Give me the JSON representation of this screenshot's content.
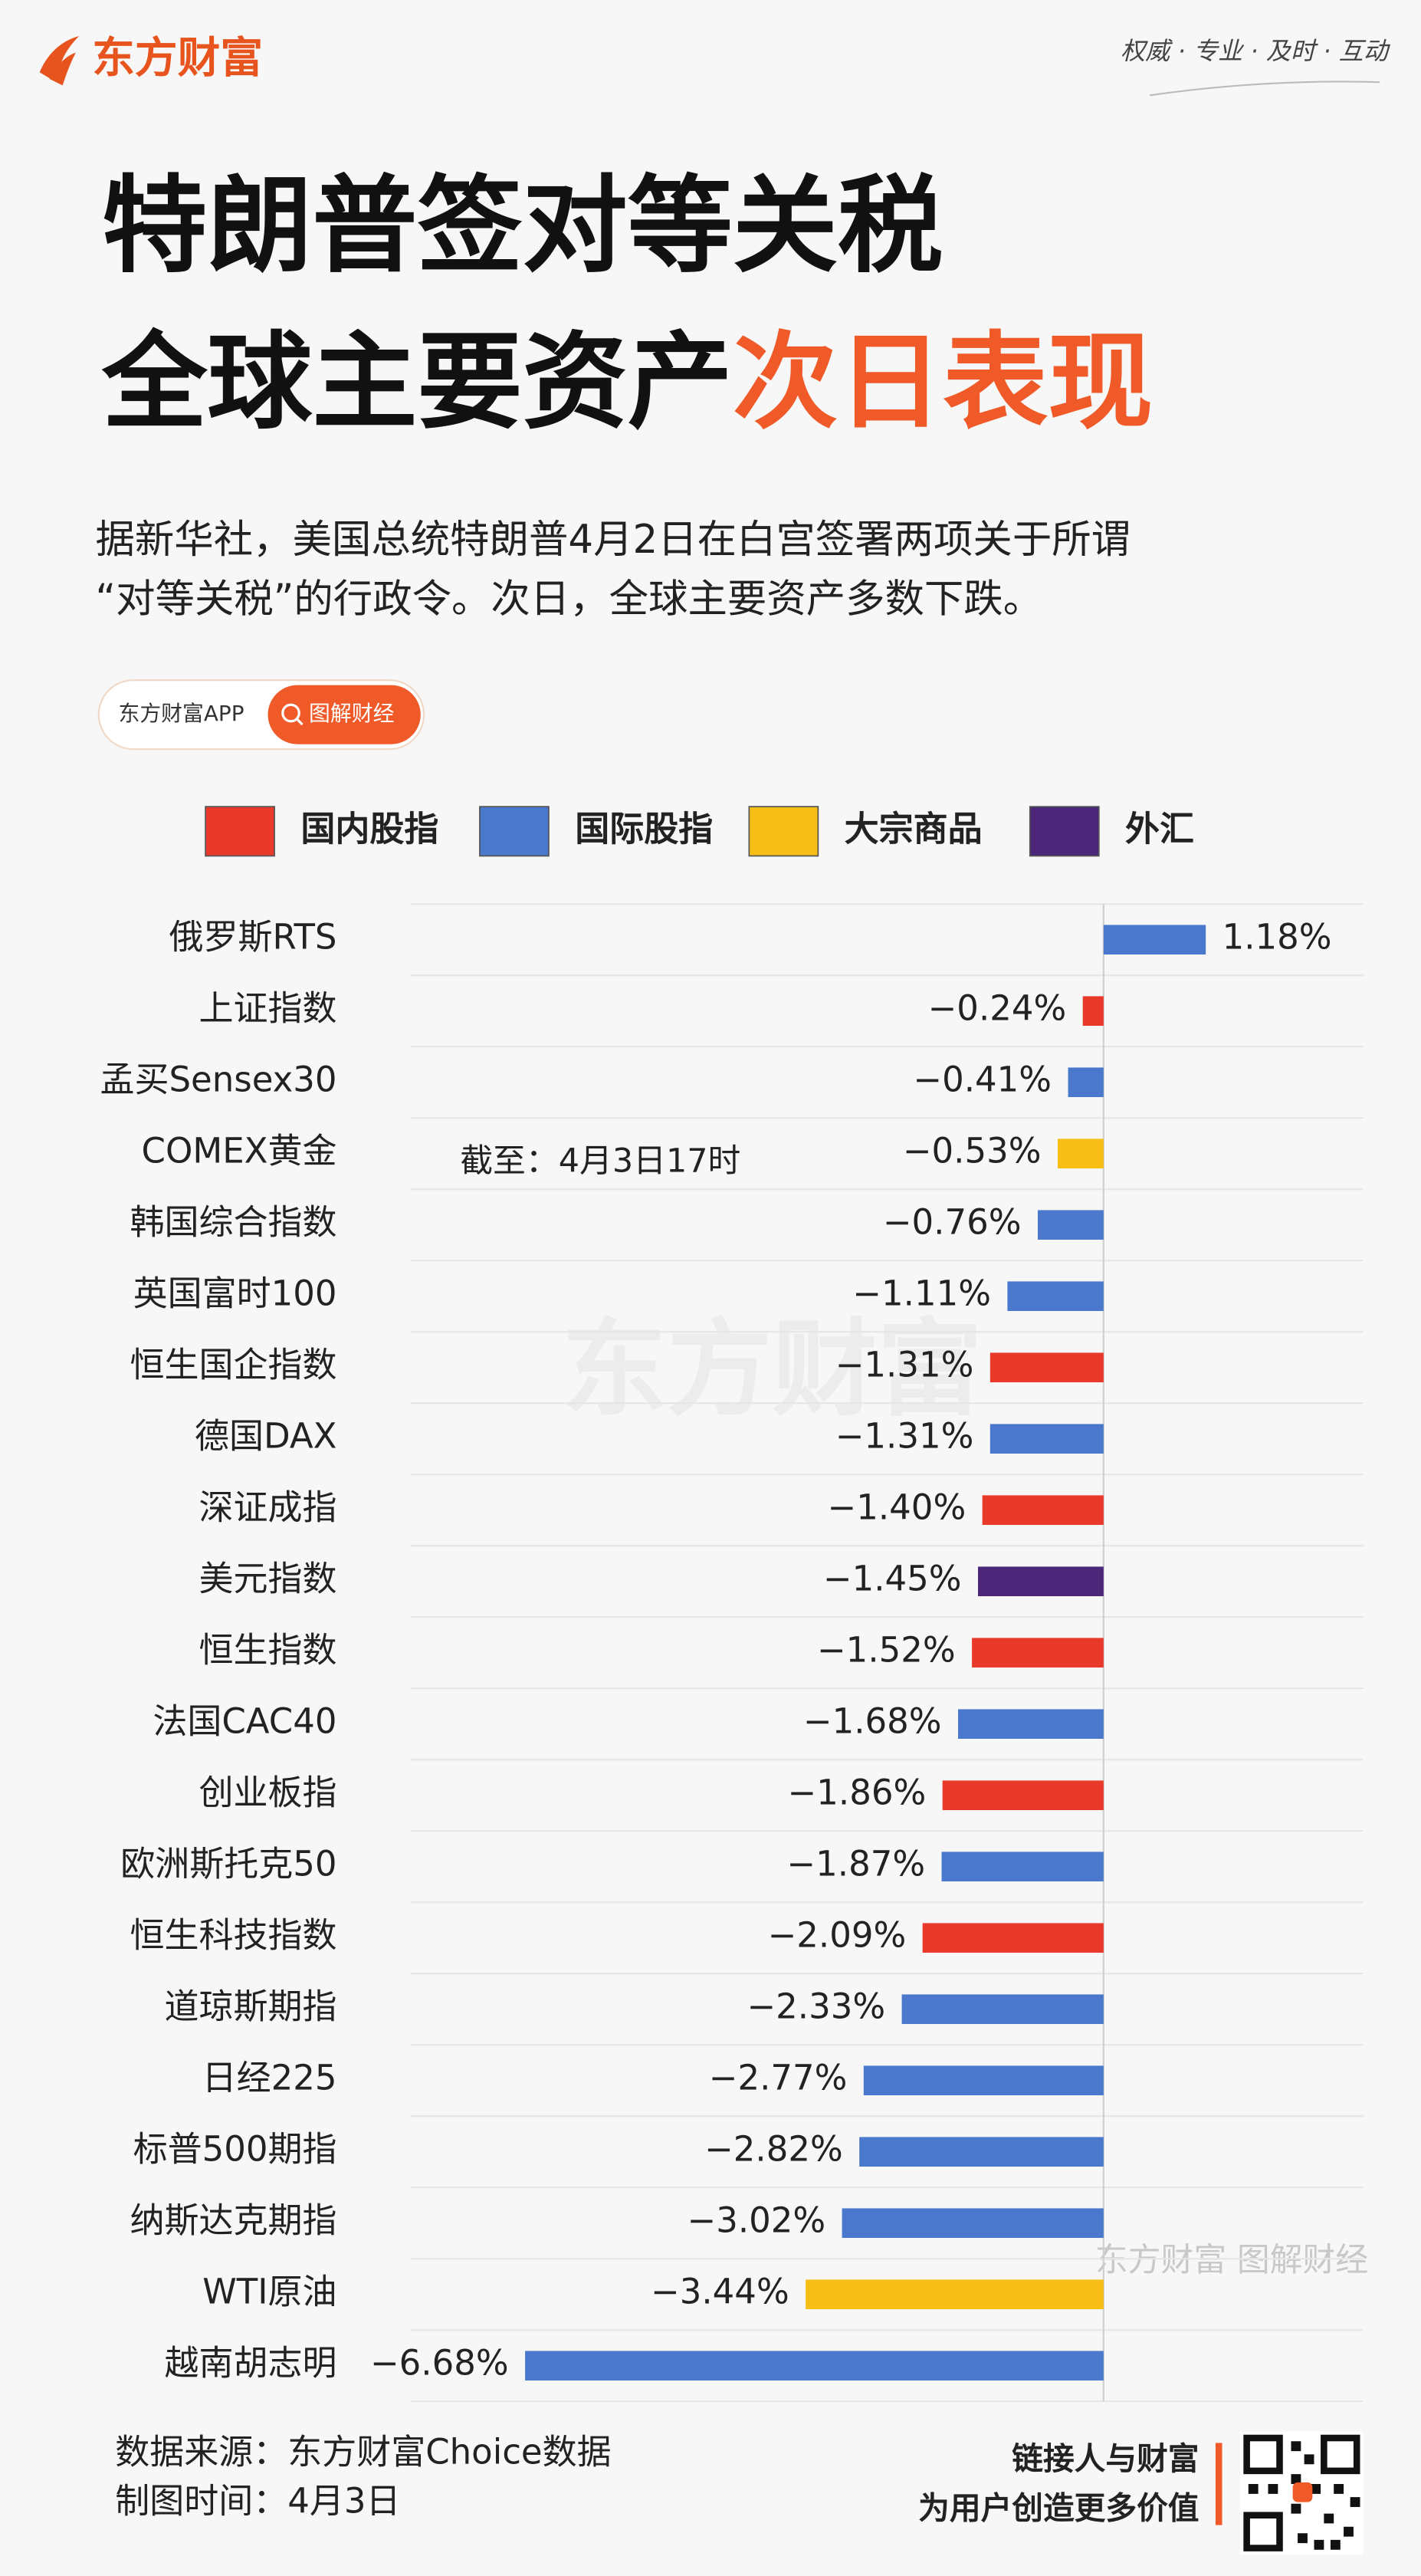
{
  "header": {
    "logo": "东方财富",
    "slogan": "权威 · 专业 · 及时 · 互动",
    "title_line1": "特朗普签对等关税",
    "title_line2_black": "全球主要资产",
    "title_line2_orange": "次日表现",
    "intro": [
      "据新华社，美国总统特朗普4月2日在白宫签署两项关于所谓",
      "“对等关税”的行政令。次日，全球主要资产多数下跌。"
    ],
    "app_name": "东方财富APP",
    "search_button": "图解财经"
  },
  "chart_data": {
    "type": "bar",
    "orientation": "horizontal",
    "annotation": "截至：4月3日17时",
    "watermark": "东方财富",
    "watermark_small": "东方财富 图解财经",
    "categories": [
      "俄罗斯RTS",
      "上证指数",
      "孟买Sensex30",
      "COMEX黄金",
      "韩国综合指数",
      "英国富时100",
      "恒生国企指数",
      "德国DAX",
      "深证成指",
      "美元指数",
      "恒生指数",
      "法国CAC40",
      "创业板指",
      "欧洲斯托克50",
      "恒生科技指数",
      "道琼斯期指",
      "日经225",
      "标普500期指",
      "纳斯达克期指",
      "WTI原油",
      "越南胡志明"
    ],
    "xlim": [
      -8,
      3
    ],
    "series": [
      {
        "name": "国内股指",
        "color": "#e8392b",
        "values": [
          null,
          -0.24,
          null,
          null,
          null,
          null,
          -1.31,
          null,
          -1.4,
          null,
          -1.52,
          null,
          -1.86,
          null,
          -2.09,
          null,
          null,
          null,
          null,
          null,
          null
        ],
        "value_labels": [
          null,
          "−0.24%",
          null,
          null,
          null,
          null,
          "−1.31%",
          null,
          "−1.40%",
          null,
          "−1.52%",
          null,
          "−1.86%",
          null,
          "−2.09%",
          null,
          null,
          null,
          null,
          null,
          null
        ]
      },
      {
        "name": "国际股指",
        "color": "#4a78cc",
        "values": [
          1.18,
          null,
          -0.41,
          null,
          -0.76,
          -1.11,
          null,
          -1.31,
          null,
          null,
          null,
          -1.68,
          null,
          -1.87,
          null,
          -2.33,
          -2.77,
          -2.82,
          -3.02,
          null,
          -6.68
        ],
        "value_labels": [
          "1.18%",
          null,
          "−0.41%",
          null,
          "−0.76%",
          "−1.11%",
          null,
          "−1.31%",
          null,
          null,
          null,
          "−1.68%",
          null,
          "−1.87%",
          null,
          "−2.33%",
          "−2.77%",
          "−2.82%",
          "−3.02%",
          null,
          "−6.68%"
        ]
      },
      {
        "name": "大宗商品",
        "color": "#f7be16",
        "values": [
          null,
          null,
          null,
          -0.53,
          null,
          null,
          null,
          null,
          null,
          null,
          null,
          null,
          null,
          null,
          null,
          null,
          null,
          null,
          null,
          -3.44,
          null
        ],
        "value_labels": [
          null,
          null,
          null,
          "−0.53%",
          null,
          null,
          null,
          null,
          null,
          null,
          null,
          null,
          null,
          null,
          null,
          null,
          null,
          null,
          null,
          "−3.44%",
          null
        ]
      },
      {
        "name": "外汇",
        "color": "#4b2679",
        "values": [
          null,
          null,
          null,
          null,
          null,
          null,
          null,
          null,
          null,
          -1.45,
          null,
          null,
          null,
          null,
          null,
          null,
          null,
          null,
          null,
          null,
          null
        ],
        "value_labels": [
          null,
          null,
          null,
          null,
          null,
          null,
          null,
          null,
          null,
          "−1.45%",
          null,
          null,
          null,
          null,
          null,
          null,
          null,
          null,
          null,
          null,
          null
        ]
      }
    ]
  },
  "footer": {
    "source": "数据来源：东方财富Choice数据",
    "date": "制图时间：4月3日",
    "tagline1": "链接人与财富",
    "tagline2": "为用户创造更多价值"
  }
}
